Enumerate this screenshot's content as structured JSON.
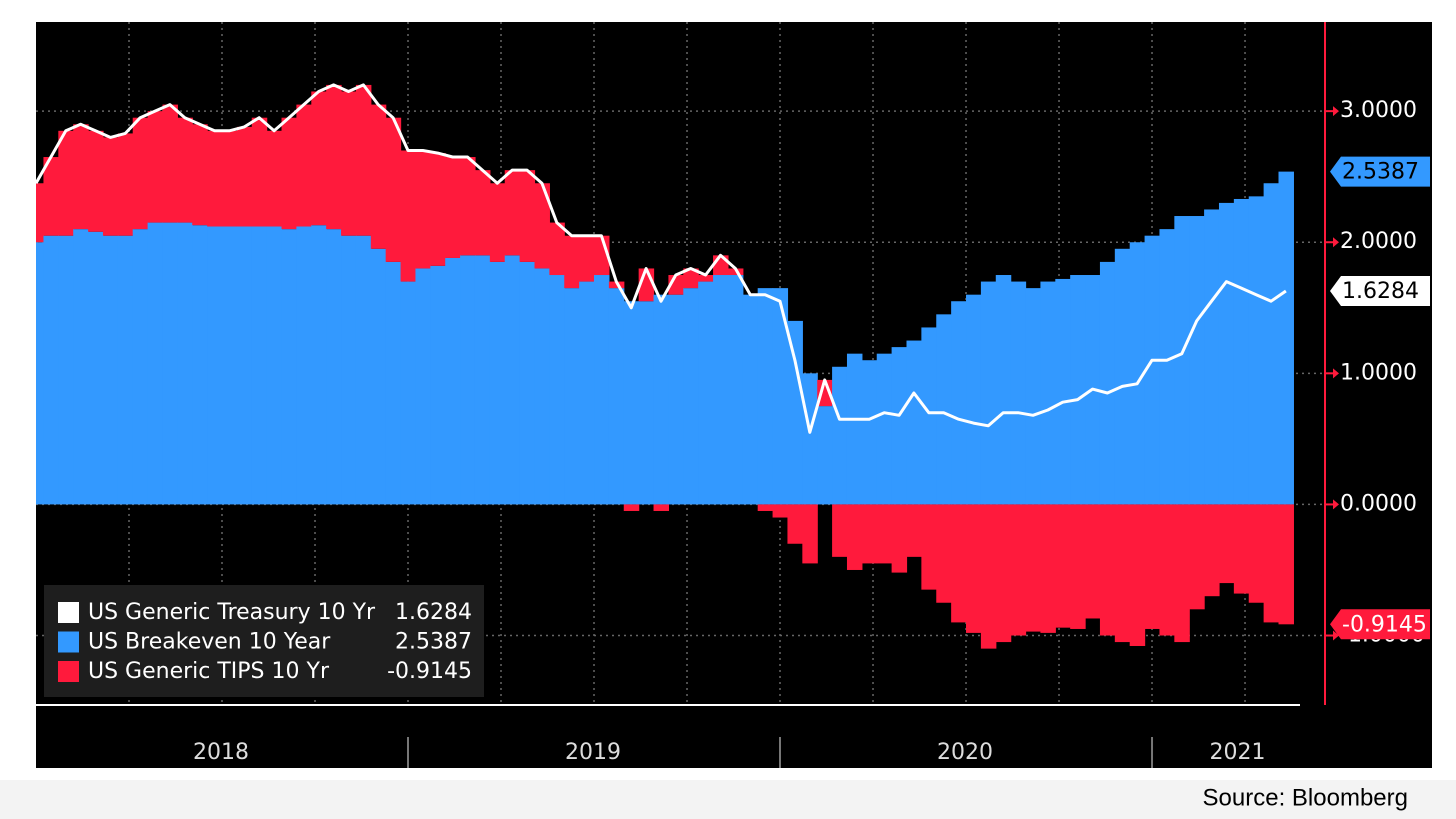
{
  "chart_data": {
    "type": "area",
    "source": "Source: Bloomberg",
    "x": [
      2018,
      2018.04,
      2018.08,
      2018.12,
      2018.16,
      2018.2,
      2018.24,
      2018.28,
      2018.32,
      2018.36,
      2018.4,
      2018.44,
      2018.48,
      2018.52,
      2018.56,
      2018.6,
      2018.64,
      2018.68,
      2018.72,
      2018.76,
      2018.8,
      2018.84,
      2018.88,
      2018.92,
      2018.96,
      2019,
      2019.04,
      2019.08,
      2019.12,
      2019.16,
      2019.2,
      2019.24,
      2019.28,
      2019.32,
      2019.36,
      2019.4,
      2019.44,
      2019.48,
      2019.52,
      2019.56,
      2019.6,
      2019.64,
      2019.68,
      2019.72,
      2019.76,
      2019.8,
      2019.84,
      2019.88,
      2019.92,
      2019.96,
      2020,
      2020.04,
      2020.08,
      2020.12,
      2020.16,
      2020.2,
      2020.24,
      2020.28,
      2020.32,
      2020.36,
      2020.4,
      2020.44,
      2020.48,
      2020.52,
      2020.56,
      2020.6,
      2020.64,
      2020.68,
      2020.72,
      2020.76,
      2020.8,
      2020.84,
      2020.88,
      2020.92,
      2020.96,
      2021,
      2021.04,
      2021.08,
      2021.12,
      2021.16,
      2021.2,
      2021.24,
      2021.28,
      2021.32,
      2021.36
    ],
    "series": [
      {
        "name": "US Generic Treasury 10 Yr",
        "color": "#ffffff",
        "values": [
          2.45,
          2.65,
          2.85,
          2.9,
          2.85,
          2.8,
          2.83,
          2.95,
          3,
          3.05,
          2.95,
          2.9,
          2.85,
          2.85,
          2.88,
          2.95,
          2.85,
          2.95,
          3.05,
          3.15,
          3.2,
          3.15,
          3.2,
          3.05,
          2.95,
          2.7,
          2.7,
          2.68,
          2.65,
          2.65,
          2.55,
          2.45,
          2.55,
          2.55,
          2.45,
          2.15,
          2.05,
          2.05,
          2.05,
          1.7,
          1.5,
          1.8,
          1.55,
          1.75,
          1.8,
          1.75,
          1.9,
          1.8,
          1.6,
          1.6,
          1.55,
          1.1,
          0.55,
          0.95,
          0.65,
          0.65,
          0.65,
          0.7,
          0.68,
          0.85,
          0.7,
          0.7,
          0.65,
          0.62,
          0.6,
          0.7,
          0.7,
          0.68,
          0.72,
          0.78,
          0.8,
          0.88,
          0.85,
          0.9,
          0.92,
          1.1,
          1.1,
          1.15,
          1.4,
          1.55,
          1.7,
          1.65,
          1.6,
          1.55,
          1.6284
        ]
      },
      {
        "name": "US Breakeven 10 Year",
        "color": "#3399ff",
        "values": [
          2,
          2.05,
          2.05,
          2.1,
          2.08,
          2.05,
          2.05,
          2.1,
          2.15,
          2.15,
          2.15,
          2.13,
          2.12,
          2.12,
          2.12,
          2.12,
          2.12,
          2.1,
          2.12,
          2.13,
          2.1,
          2.05,
          2.05,
          1.95,
          1.85,
          1.7,
          1.8,
          1.82,
          1.88,
          1.9,
          1.9,
          1.85,
          1.9,
          1.85,
          1.8,
          1.75,
          1.65,
          1.7,
          1.75,
          1.65,
          1.55,
          1.55,
          1.6,
          1.6,
          1.65,
          1.7,
          1.75,
          1.75,
          1.6,
          1.65,
          1.65,
          1.4,
          1,
          0.75,
          1.05,
          1.15,
          1.1,
          1.15,
          1.2,
          1.25,
          1.35,
          1.45,
          1.55,
          1.6,
          1.7,
          1.75,
          1.7,
          1.65,
          1.7,
          1.72,
          1.75,
          1.75,
          1.85,
          1.95,
          2,
          2.05,
          2.1,
          2.2,
          2.2,
          2.25,
          2.3,
          2.33,
          2.35,
          2.45,
          2.5387
        ]
      },
      {
        "name": "US Generic TIPS 10 Yr",
        "color": "#ff1a3c",
        "values": [
          0.45,
          0.6,
          0.8,
          0.8,
          0.77,
          0.75,
          0.78,
          0.85,
          0.85,
          0.9,
          0.8,
          0.77,
          0.73,
          0.73,
          0.76,
          0.83,
          0.73,
          0.85,
          0.93,
          1.02,
          1.1,
          1.1,
          1.15,
          1.1,
          1.1,
          1,
          0.9,
          0.86,
          0.77,
          0.75,
          0.65,
          0.6,
          0.65,
          0.7,
          0.65,
          0.4,
          0.4,
          0.35,
          0.3,
          0.05,
          -0.05,
          0.25,
          -0.05,
          0.15,
          0.15,
          0.05,
          0.15,
          0.05,
          0,
          -0.05,
          -0.1,
          -0.3,
          -0.45,
          0.2,
          -0.4,
          -0.5,
          -0.45,
          -0.45,
          -0.52,
          -0.4,
          -0.65,
          -0.75,
          -0.9,
          -0.98,
          -1.1,
          -1.05,
          -1,
          -0.97,
          -0.98,
          -0.94,
          -0.95,
          -0.87,
          -1,
          -1.05,
          -1.08,
          -0.95,
          -1,
          -1.05,
          -0.8,
          -0.7,
          -0.6,
          -0.68,
          -0.75,
          -0.9,
          -0.9145
        ]
      }
    ],
    "xlim": [
      2018,
      2021.465
    ],
    "xticks": [
      2018,
      2019,
      2020,
      2021
    ],
    "x_grid": [
      2018.25,
      2018.5,
      2018.75,
      2019,
      2019.25,
      2019.5,
      2019.75,
      2020,
      2020.25,
      2020.5,
      2020.75,
      2021,
      2021.25
    ],
    "ylim": [
      -1.53,
      3.68
    ],
    "yticks": [
      {
        "value": 3,
        "label": "3.0000"
      },
      {
        "value": 2,
        "label": "2.0000"
      },
      {
        "value": 1,
        "label": "1.0000"
      },
      {
        "value": 0,
        "label": "0.0000"
      },
      {
        "value": -1,
        "label": "-1.0000"
      }
    ],
    "grid": true,
    "legend": "lower left"
  }
}
